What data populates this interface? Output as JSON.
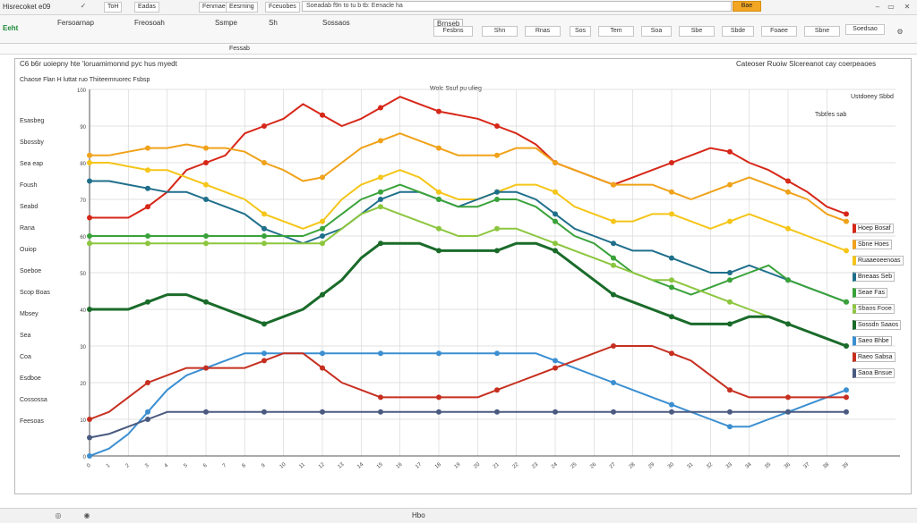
{
  "toolbar": {
    "app_title": "Hisrecoket e09",
    "menu_items": [
      "ToH",
      "Eadas",
      "Fenmaes",
      "Eesrning",
      "Fceuobes"
    ],
    "search_text": "Soeadab f9n to tu b tb: Eenacle ha",
    "search_button": "Bae",
    "row2_left": "Eeht",
    "row2_items": [
      "Fersoarnap",
      "Freosoah",
      "Ssmpe",
      "Sh",
      "Sossaos"
    ],
    "row2_field": "Brnseb",
    "ribbon_cells": [
      "Fesbns",
      "Shn",
      "Rnas",
      "Sos",
      "Tem",
      "Soa",
      "Sbe",
      "Sbde",
      "Foaee",
      "Sbne",
      "Soedsao"
    ],
    "formula_text": "Fessab"
  },
  "chart_data": {
    "type": "line",
    "title": "C6 b6r uoiepny hte 'loruamimonnd pyc hus myedt",
    "subtitle": "Chaose Flan H luttat ruo Thiiteemruorec Fsbsp",
    "title_right": "Cateoser Ruoiw Slcereanot cay coerpeaoes",
    "inner_label": "Wolc Ssuf pu ulieg",
    "top_right_label": "Ustdoeey Sbbd",
    "top_right_label2": "Tsbtfes sab",
    "x": [
      "0",
      "1",
      "2",
      "3",
      "4",
      "5",
      "6",
      "7",
      "8",
      "9",
      "10",
      "11",
      "12",
      "13",
      "14",
      "15",
      "16",
      "17",
      "18",
      "19",
      "20",
      "21",
      "22",
      "23",
      "24",
      "25",
      "26",
      "27",
      "28",
      "29",
      "30",
      "31",
      "32",
      "33",
      "34",
      "35",
      "36",
      "37",
      "38",
      "39"
    ],
    "ylim": [
      0,
      100
    ],
    "grid": true,
    "series": [
      {
        "name": "Hoep Bosaf",
        "color": "#d62718",
        "values": [
          65,
          65,
          65,
          68,
          72,
          78,
          80,
          82,
          88,
          90,
          92,
          96,
          93,
          90,
          92,
          95,
          98,
          96,
          94,
          93,
          92,
          90,
          88,
          85,
          80,
          78,
          76,
          74,
          76,
          78,
          80,
          82,
          84,
          83,
          80,
          78,
          75,
          72,
          68,
          66
        ]
      },
      {
        "name": "Sbne Hoes",
        "color": "#f0a21a",
        "values": [
          82,
          82,
          83,
          84,
          84,
          85,
          84,
          84,
          83,
          80,
          78,
          75,
          76,
          80,
          84,
          86,
          88,
          86,
          84,
          82,
          82,
          82,
          84,
          84,
          80,
          78,
          76,
          74,
          74,
          74,
          72,
          70,
          72,
          74,
          76,
          74,
          72,
          70,
          66,
          64
        ]
      },
      {
        "name": "Ruaaeoeenoas",
        "color": "#f5c518",
        "values": [
          80,
          80,
          79,
          78,
          78,
          76,
          74,
          72,
          70,
          66,
          64,
          62,
          64,
          70,
          74,
          76,
          78,
          76,
          72,
          70,
          70,
          72,
          74,
          74,
          72,
          68,
          66,
          64,
          64,
          66,
          66,
          64,
          62,
          64,
          66,
          64,
          62,
          60,
          58,
          56
        ]
      },
      {
        "name": "Bneaas Seb",
        "color": "#1f6f8b",
        "values": [
          75,
          75,
          74,
          73,
          72,
          72,
          70,
          68,
          66,
          62,
          60,
          58,
          60,
          62,
          66,
          70,
          72,
          72,
          70,
          68,
          70,
          72,
          72,
          70,
          66,
          62,
          60,
          58,
          56,
          56,
          54,
          52,
          50,
          50,
          52,
          50,
          48,
          46,
          44,
          42
        ]
      },
      {
        "name": "Seae Fas",
        "color": "#3aa23a",
        "values": [
          60,
          60,
          60,
          60,
          60,
          60,
          60,
          60,
          60,
          60,
          60,
          60,
          62,
          66,
          70,
          72,
          74,
          72,
          70,
          68,
          68,
          70,
          70,
          68,
          64,
          60,
          58,
          54,
          50,
          48,
          46,
          44,
          46,
          48,
          50,
          52,
          48,
          46,
          44,
          42
        ]
      },
      {
        "name": "Sbaos Fooe",
        "color": "#8cc63f",
        "values": [
          58,
          58,
          58,
          58,
          58,
          58,
          58,
          58,
          58,
          58,
          58,
          58,
          58,
          62,
          66,
          68,
          66,
          64,
          62,
          60,
          60,
          62,
          62,
          60,
          58,
          56,
          54,
          52,
          50,
          48,
          48,
          46,
          44,
          42,
          40,
          38,
          36,
          34,
          32,
          30
        ]
      },
      {
        "name": "Sossdn Saaos",
        "color": "#1a6b2a",
        "values": [
          40,
          40,
          40,
          42,
          44,
          44,
          42,
          40,
          38,
          36,
          38,
          40,
          44,
          48,
          54,
          58,
          58,
          58,
          56,
          56,
          56,
          56,
          58,
          58,
          56,
          52,
          48,
          44,
          42,
          40,
          38,
          36,
          36,
          36,
          38,
          38,
          36,
          34,
          32,
          30
        ]
      },
      {
        "name": "Saeo Bhbe",
        "color": "#3b8fd1",
        "values": [
          0,
          2,
          6,
          12,
          18,
          22,
          24,
          26,
          28,
          28,
          28,
          28,
          28,
          28,
          28,
          28,
          28,
          28,
          28,
          28,
          28,
          28,
          28,
          28,
          26,
          24,
          22,
          20,
          18,
          16,
          14,
          12,
          10,
          8,
          8,
          10,
          12,
          14,
          16,
          18
        ]
      },
      {
        "name": "Raeo Sabsa",
        "color": "#c62f20",
        "values": [
          10,
          12,
          16,
          20,
          22,
          24,
          24,
          24,
          24,
          26,
          28,
          28,
          24,
          20,
          18,
          16,
          16,
          16,
          16,
          16,
          16,
          18,
          20,
          22,
          24,
          26,
          28,
          30,
          30,
          30,
          28,
          26,
          22,
          18,
          16,
          16,
          16,
          16,
          16,
          16
        ]
      },
      {
        "name": "Saoa Bnsue",
        "color": "#4a5a80",
        "values": [
          5,
          6,
          8,
          10,
          12,
          12,
          12,
          12,
          12,
          12,
          12,
          12,
          12,
          12,
          12,
          12,
          12,
          12,
          12,
          12,
          12,
          12,
          12,
          12,
          12,
          12,
          12,
          12,
          12,
          12,
          12,
          12,
          12,
          12,
          12,
          12,
          12,
          12,
          12,
          12
        ]
      }
    ],
    "left_labels": [
      "Esasbeg",
      "Sbossby",
      "Sea eap",
      "Foush",
      "Seabd",
      "Rana",
      "Ouiop",
      "Soeboe",
      "Scop Boas",
      "Mbsey",
      "Sea",
      "Coa",
      "Esdboe",
      "Cossossa",
      "Feesoas"
    ],
    "y_ticks": [
      "100",
      "90",
      "80",
      "70",
      "60",
      "50",
      "40",
      "30",
      "20",
      "10",
      "0"
    ]
  },
  "status": {
    "center_text": "Hbo"
  },
  "colors": {
    "accent": "#f2a623",
    "grid": "#d9d9d9"
  }
}
